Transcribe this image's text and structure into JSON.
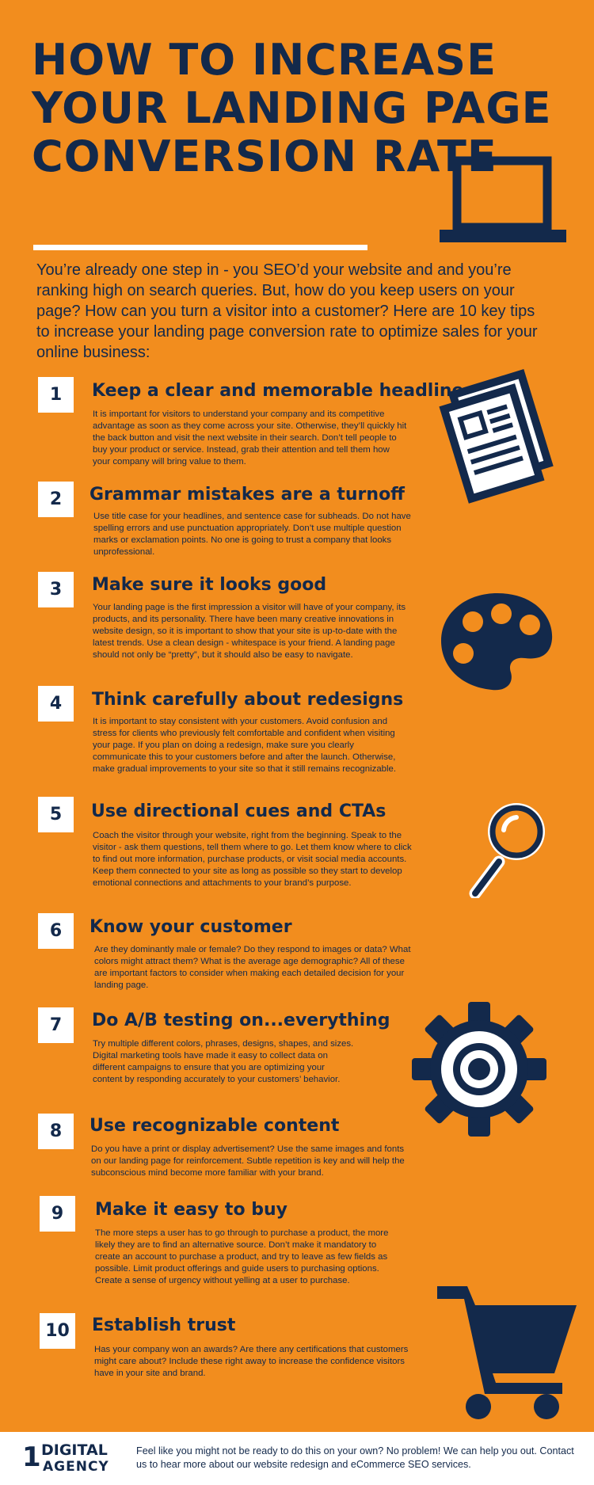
{
  "header": {
    "title": "HOW TO INCREASE YOUR LANDING PAGE CONVERSION RATE",
    "intro": "You’re already one step in - you SEO’d your website and and you’re ranking high on search queries. But, how do you keep users on your page? How can you turn a visitor into a customer? Here are 10 key tips to increase your landing page conversion rate to optimize sales for your online business:"
  },
  "tips": [
    {
      "num": "1",
      "title": "Keep a clear and memorable headline",
      "body": "It is important for visitors to understand your company and its competitive advantage as soon as they come across your site. Otherwise, they’ll quickly hit the back button and visit the next website in their search. Don’t tell people to buy your product or service. Instead, grab their attention and tell them how your company will bring value to them."
    },
    {
      "num": "2",
      "title": "Grammar mistakes are a turnoff",
      "body": "Use title case for your headlines, and sentence case for subheads. Do not have spelling errors and use punctuation appropriately. Don’t use multiple question marks or exclamation points. No one is going to trust a company that looks unprofessional."
    },
    {
      "num": "3",
      "title": "Make sure it looks good",
      "body": "Your landing page is the first impression a visitor will have of your company, its products, and its personality. There have been many creative innovations in website design, so it is important to show that your site is up-to-date with the latest trends. Use a clean design - whitespace is your friend. A landing page should not only be “pretty”, but it should also be easy to navigate."
    },
    {
      "num": "4",
      "title": "Think carefully about redesigns",
      "body": "It is important to stay consistent with your customers. Avoid confusion and stress for clients who previously felt comfortable and confident when visiting your page. If you plan on doing a redesign, make sure you clearly communicate this to your customers before and after the launch. Otherwise, make gradual improvements to your site so that it still remains recognizable."
    },
    {
      "num": "5",
      "title": "Use directional cues and CTAs",
      "body": "Coach the visitor through your website, right from the beginning. Speak to the visitor - ask them questions, tell them where to go. Let them know where to click to find out more information, purchase products, or visit social media accounts. Keep them connected to your site as long as possible so they start to develop emotional connections and attachments to your brand’s purpose."
    },
    {
      "num": "6",
      "title": "Know your customer",
      "body": "Are they dominantly male or female? Do they respond to images or data? What colors might attract them? What is the average age demographic? All of these are important factors to consider when making each detailed decision for your landing page."
    },
    {
      "num": "7",
      "title": "Do A/B testing on...everything",
      "body": "Try multiple different colors, phrases, designs, shapes, and sizes. Digital marketing tools have made it easy to collect data on different campaigns to ensure that you are optimizing your content by responding accurately to your customers’ behavior."
    },
    {
      "num": "8",
      "title": "Use recognizable content",
      "body": "Do you have a print or display advertisement? Use the same images and fonts on our landing page for reinforcement. Subtle repetition is key and will help the subconscious mind become more familiar with your brand."
    },
    {
      "num": "9",
      "title": "Make it easy to buy",
      "body": "The more steps a user has to go through to purchase a product, the more likely they are to find an alternative source. Don’t make it mandatory to create an account to purchase a product, and try to leave as few fields as possible. Limit product offerings and guide users to purchasing options. Create a sense of urgency without yelling at a user to purchase."
    },
    {
      "num": "10",
      "title": "Establish trust",
      "body": "Has your company won an awards? Are there any certifications that customers might care about? Include these right away to increase the confidence visitors have in your site and brand."
    }
  ],
  "icons": {
    "laptop": "laptop-icon",
    "newspaper": "newspaper-icon",
    "palette": "palette-icon",
    "magnifier": "magnifying-glass-icon",
    "gear": "gear-icon",
    "cart": "shopping-cart-icon"
  },
  "footer": {
    "logo_top": "DIGITAL",
    "logo_bottom": "AGENCY",
    "logo_mark": "1",
    "text": "Feel like you might not be ready to do this on your own? No problem! We can help you out. Contact us to hear more about our website redesign and eCommerce SEO services."
  },
  "colors": {
    "background": "#F28D1E",
    "navy": "#13294B",
    "white": "#FFFFFF"
  }
}
